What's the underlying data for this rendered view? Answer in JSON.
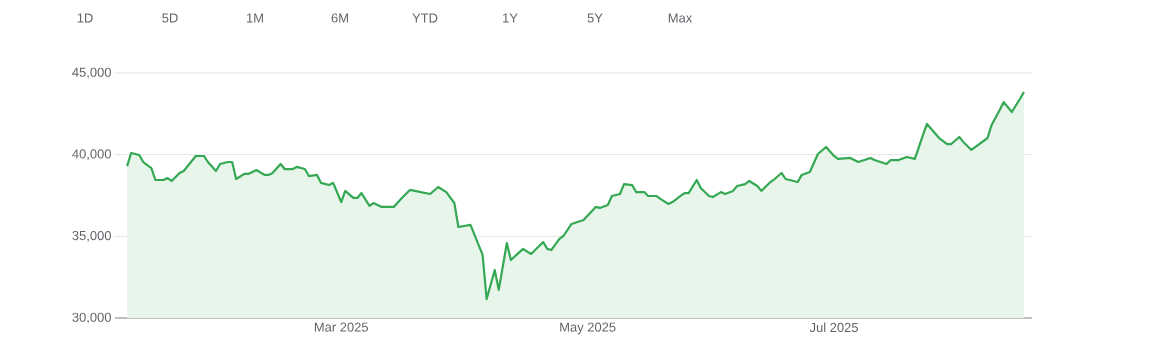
{
  "chart_data": {
    "type": "area",
    "annotations": [
      "1D",
      "5D",
      "1M",
      "6M",
      "YTD",
      "1Y",
      "5Y",
      "Max"
    ],
    "x": [
      "2025-01-07",
      "2025-01-08",
      "2025-01-10",
      "2025-01-11",
      "2025-01-13",
      "2025-01-14",
      "2025-01-16",
      "2025-01-17",
      "2025-01-18",
      "2025-01-20",
      "2025-01-21",
      "2025-01-23",
      "2025-01-24",
      "2025-01-26",
      "2025-01-27",
      "2025-01-29",
      "2025-01-30",
      "2025-02-01",
      "2025-02-02",
      "2025-02-03",
      "2025-02-05",
      "2025-02-06",
      "2025-02-08",
      "2025-02-10",
      "2025-02-11",
      "2025-02-12",
      "2025-02-14",
      "2025-02-15",
      "2025-02-17",
      "2025-02-18",
      "2025-02-20",
      "2025-02-21",
      "2025-02-23",
      "2025-02-24",
      "2025-02-26",
      "2025-02-27",
      "2025-03-01",
      "2025-03-02",
      "2025-03-04",
      "2025-03-05",
      "2025-03-06",
      "2025-03-08",
      "2025-03-09",
      "2025-03-11",
      "2025-03-14",
      "2025-03-16",
      "2025-03-18",
      "2025-03-23",
      "2025-03-25",
      "2025-03-27",
      "2025-03-29",
      "2025-03-30",
      "2025-04-02",
      "2025-04-05",
      "2025-04-06",
      "2025-04-08",
      "2025-04-09",
      "2025-04-11",
      "2025-04-12",
      "2025-04-15",
      "2025-04-17",
      "2025-04-20",
      "2025-04-21",
      "2025-04-22",
      "2025-04-24",
      "2025-04-25",
      "2025-04-27",
      "2025-04-30",
      "2025-05-03",
      "2025-05-04",
      "2025-05-06",
      "2025-05-07",
      "2025-05-09",
      "2025-05-10",
      "2025-05-12",
      "2025-05-13",
      "2025-05-15",
      "2025-05-16",
      "2025-05-18",
      "2025-05-19",
      "2025-05-21",
      "2025-05-22",
      "2025-05-24",
      "2025-05-25",
      "2025-05-26",
      "2025-05-28",
      "2025-05-29",
      "2025-05-31",
      "2025-06-01",
      "2025-06-03",
      "2025-06-04",
      "2025-06-06",
      "2025-06-07",
      "2025-06-09",
      "2025-06-10",
      "2025-06-12",
      "2025-06-13",
      "2025-06-15",
      "2025-06-16",
      "2025-06-18",
      "2025-06-19",
      "2025-06-22",
      "2025-06-23",
      "2025-06-25",
      "2025-06-27",
      "2025-06-29",
      "2025-07-01",
      "2025-07-02",
      "2025-07-05",
      "2025-07-07",
      "2025-07-10",
      "2025-07-11",
      "2025-07-14",
      "2025-07-15",
      "2025-07-17",
      "2025-07-19",
      "2025-07-20",
      "2025-07-21",
      "2025-07-23",
      "2025-07-24",
      "2025-07-27",
      "2025-07-29",
      "2025-07-30",
      "2025-08-01",
      "2025-08-02",
      "2025-08-04",
      "2025-08-08",
      "2025-08-09",
      "2025-08-11",
      "2025-08-12",
      "2025-08-14",
      "2025-08-16",
      "2025-08-17"
    ],
    "values": [
      39300,
      40100,
      39980,
      39550,
      39180,
      38450,
      38450,
      38570,
      38390,
      38880,
      39000,
      39610,
      39920,
      39920,
      39550,
      39000,
      39430,
      39550,
      39550,
      38510,
      38820,
      38820,
      39060,
      38760,
      38760,
      38880,
      39430,
      39120,
      39120,
      39250,
      39120,
      38690,
      38760,
      38270,
      38140,
      38270,
      37100,
      37780,
      37350,
      37350,
      37650,
      36860,
      37040,
      36800,
      36800,
      37350,
      37840,
      37590,
      38020,
      37710,
      37040,
      35570,
      35700,
      33860,
      31160,
      32940,
      31720,
      34590,
      33550,
      34230,
      33920,
      34650,
      34230,
      34160,
      34840,
      35020,
      35760,
      36000,
      36800,
      36740,
      36920,
      37470,
      37590,
      38200,
      38140,
      37710,
      37710,
      37470,
      37470,
      37290,
      36980,
      37100,
      37470,
      37650,
      37650,
      38450,
      37960,
      37470,
      37410,
      37710,
      37590,
      37780,
      38080,
      38200,
      38390,
      38080,
      37780,
      38270,
      38450,
      38880,
      38510,
      38330,
      38760,
      38940,
      40040,
      40470,
      39920,
      39740,
      39800,
      39550,
      39800,
      39670,
      39430,
      39670,
      39670,
      39860,
      39800,
      39740,
      41200,
      41880,
      41020,
      40650,
      40650,
      41080,
      40780,
      40290,
      41020,
      41820,
      42730,
      43220,
      42610,
      43410,
      43840
    ],
    "color": "#34a853",
    "xlim": [
      "2025-01-04",
      "2025-08-19"
    ],
    "xticks": [
      {
        "value": "2025-03-01",
        "label": "Mar 2025"
      },
      {
        "value": "2025-05-01",
        "label": "May 2025"
      },
      {
        "value": "2025-07-01",
        "label": "Jul 2025"
      }
    ],
    "ylim": [
      30000,
      45000
    ],
    "yticks": [
      {
        "value": 30000,
        "label": "30,000"
      },
      {
        "value": 35000,
        "label": "35,000"
      },
      {
        "value": 40000,
        "label": "40,000"
      },
      {
        "value": 45000,
        "label": "45,000"
      }
    ],
    "grid": "y"
  }
}
